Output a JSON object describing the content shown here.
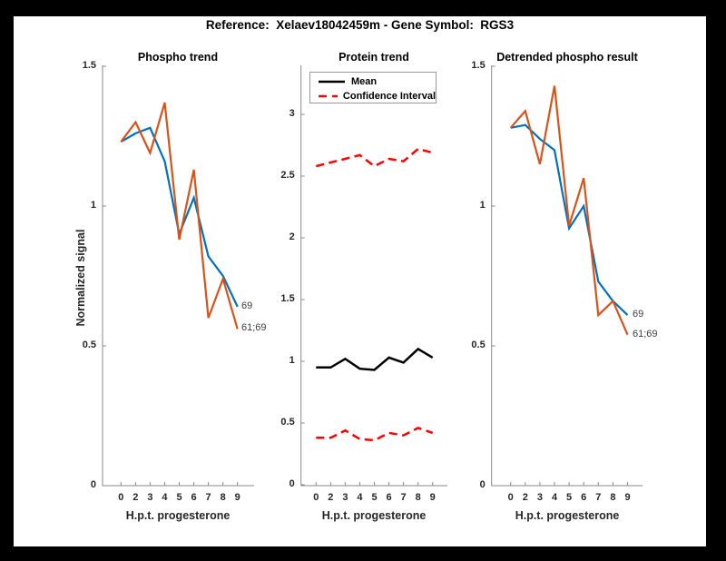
{
  "figure": {
    "title": "Reference:  Xelaev18042459m - Gene Symbol:  RGS3",
    "background_color": "#000000",
    "canvas_color": "#ffffff",
    "axis_color": "#8a8a8a",
    "tick_label_color": "#262626"
  },
  "chart_data": [
    {
      "type": "line",
      "title": "Phospho trend",
      "xlabel": "H.p.t. progesterone",
      "ylabel": "Normalized signal",
      "x_tick_labels": [
        "0",
        "2",
        "3",
        "4",
        "5",
        "6",
        "7",
        "8",
        "9"
      ],
      "yticks": [
        0,
        0.5,
        1,
        1.5
      ],
      "ylim": [
        0,
        1.5
      ],
      "grid": false,
      "legend": null,
      "series": [
        {
          "name": "69",
          "color": "#0072BD",
          "dashed": false,
          "end_label": "69",
          "values": [
            1.23,
            1.26,
            1.28,
            1.16,
            0.9,
            1.03,
            0.82,
            0.75,
            0.64
          ]
        },
        {
          "name": "61;69",
          "color": "#D95319",
          "dashed": false,
          "end_label": "61;69",
          "values": [
            1.23,
            1.3,
            1.19,
            1.37,
            0.88,
            1.13,
            0.6,
            0.74,
            0.56
          ]
        }
      ]
    },
    {
      "type": "line",
      "title": "Protein trend",
      "xlabel": "H.p.t. progesterone",
      "ylabel": "",
      "x_tick_labels": [
        "0",
        "2",
        "3",
        "4",
        "5",
        "6",
        "7",
        "8",
        "9"
      ],
      "yticks": [
        0,
        0.5,
        1,
        1.5,
        2,
        2.5,
        3
      ],
      "ylim": [
        0,
        3.4
      ],
      "grid": false,
      "legend": {
        "position": "northwest",
        "entries": [
          "Mean",
          "Confidence Interval"
        ]
      },
      "series": [
        {
          "name": "Mean",
          "color": "#000000",
          "dashed": false,
          "end_label": "",
          "values": [
            0.95,
            0.95,
            1.02,
            0.94,
            0.93,
            1.03,
            0.99,
            1.1,
            1.03
          ]
        },
        {
          "name": "Confidence Interval upper",
          "color": "#FF0000",
          "dashed": true,
          "end_label": "",
          "values": [
            2.58,
            2.61,
            2.64,
            2.67,
            2.58,
            2.64,
            2.62,
            2.72,
            2.69
          ]
        },
        {
          "name": "Confidence Interval lower",
          "color": "#FF0000",
          "dashed": true,
          "end_label": "",
          "values": [
            0.38,
            0.38,
            0.44,
            0.37,
            0.36,
            0.42,
            0.4,
            0.46,
            0.42
          ]
        }
      ]
    },
    {
      "type": "line",
      "title": "Detrended phospho result",
      "xlabel": "H.p.t. progesterone",
      "ylabel": "",
      "x_tick_labels": [
        "0",
        "2",
        "3",
        "4",
        "5",
        "6",
        "7",
        "8",
        "9"
      ],
      "yticks": [
        0,
        0.5,
        1,
        1.5
      ],
      "ylim": [
        0,
        1.5
      ],
      "grid": false,
      "legend": null,
      "series": [
        {
          "name": "69",
          "color": "#0072BD",
          "dashed": false,
          "end_label": "69",
          "values": [
            1.28,
            1.29,
            1.24,
            1.2,
            0.92,
            1.0,
            0.73,
            0.66,
            0.61
          ]
        },
        {
          "name": "61;69",
          "color": "#D95319",
          "dashed": false,
          "end_label": "61;69",
          "values": [
            1.28,
            1.34,
            1.15,
            1.43,
            0.93,
            1.1,
            0.61,
            0.66,
            0.54
          ]
        }
      ]
    }
  ]
}
